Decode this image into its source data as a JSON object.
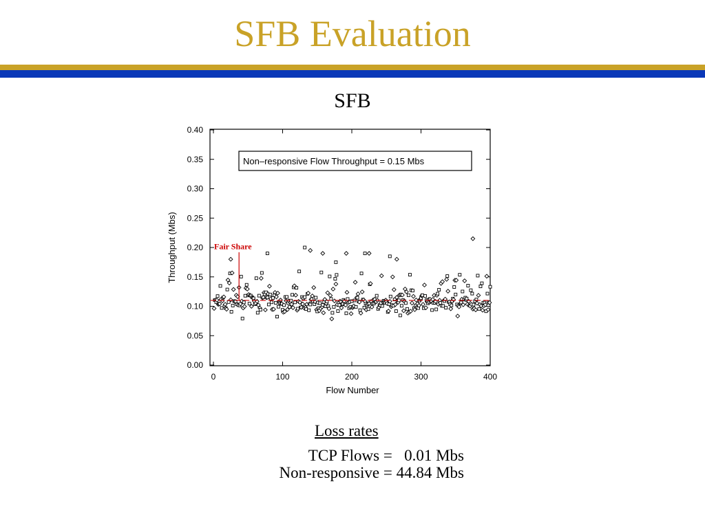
{
  "slide": {
    "title": "SFB Evaluation",
    "subtitle": "SFB",
    "colors": {
      "title": "#c9a227",
      "rule_gold": "#c9a227",
      "rule_blue": "#0a38b8",
      "fair_share": "#cc0000"
    }
  },
  "loss": {
    "heading": "Loss rates",
    "tcp": "TCP Flows =   0.01 Mbs",
    "nonresponsive": "Non-responsive = 44.84 Mbs"
  },
  "chart_data": {
    "type": "scatter",
    "xlabel": "Flow Number",
    "ylabel": "Throughput (Mbs)",
    "xlim": [
      0,
      400
    ],
    "ylim": [
      0.0,
      0.4
    ],
    "x_ticks": [
      "0",
      "100",
      "200",
      "300",
      "400"
    ],
    "y_ticks": [
      "0.00",
      "0.05",
      "0.10",
      "0.15",
      "0.20",
      "0.25",
      "0.30",
      "0.35",
      "0.40"
    ],
    "legend_box": "Non–responsive Flow Throughput =  0.15 Mbs",
    "fair_share": {
      "label": "Fair Share",
      "value": 0.11,
      "x": 37
    },
    "notable_points": [
      {
        "x": 25,
        "y": 0.18,
        "marker": "diamond"
      },
      {
        "x": 78,
        "y": 0.19,
        "marker": "square"
      },
      {
        "x": 132,
        "y": 0.2,
        "marker": "square"
      },
      {
        "x": 140,
        "y": 0.195,
        "marker": "diamond"
      },
      {
        "x": 158,
        "y": 0.19,
        "marker": "diamond"
      },
      {
        "x": 177,
        "y": 0.175,
        "marker": "square"
      },
      {
        "x": 192,
        "y": 0.19,
        "marker": "diamond"
      },
      {
        "x": 219,
        "y": 0.19,
        "marker": "square"
      },
      {
        "x": 225,
        "y": 0.19,
        "marker": "diamond"
      },
      {
        "x": 255,
        "y": 0.185,
        "marker": "square"
      },
      {
        "x": 265,
        "y": 0.18,
        "marker": "diamond"
      },
      {
        "x": 375,
        "y": 0.215,
        "marker": "diamond"
      }
    ],
    "cluster": {
      "flows": 400,
      "center": 0.105,
      "spread_low": 0.075,
      "spread_high": 0.16,
      "markers": [
        "square",
        "diamond"
      ]
    },
    "grid": false
  }
}
